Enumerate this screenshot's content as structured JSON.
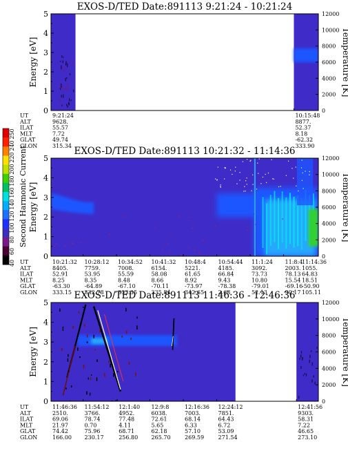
{
  "colorbar": {
    "label": "Second Harmonic Current",
    "ticks": [
      "40",
      "60",
      "80",
      "100",
      "120",
      "140",
      "160",
      "180",
      "200",
      "220",
      "240",
      "250"
    ],
    "colors": [
      "#000000",
      "#4a0033",
      "#7a1a8a",
      "#3a2fc0",
      "#2030ff",
      "#1e70ff",
      "#00b0ff",
      "#00e0e0",
      "#00c060",
      "#40d000",
      "#c0e000",
      "#ffe000",
      "#ff8000",
      "#ff2000",
      "#e00000"
    ]
  },
  "palette": {
    "background": "#3f2cc8",
    "blue": "#1e56ff",
    "light": "#28a8ff",
    "cyan": "#00e8e8",
    "green": "#30d030",
    "yellow": "#e8e000",
    "red": "#ff2020",
    "white": "#ffffff"
  },
  "chart_data": [
    {
      "type": "heatmap",
      "title": "EXOS-D/TED   Date:891113  9:21:24 - 10:21:24",
      "ylabel": "Energy [eV]",
      "ylabel_right": "Temperature [K]",
      "ylim": [
        0,
        5
      ],
      "yticks": [
        "0",
        "1",
        "2",
        "3",
        "4",
        "5"
      ],
      "ylim_right": [
        0,
        12000
      ],
      "yticks_right": [
        "0",
        "2000",
        "4000",
        "6000",
        "8000",
        "10000",
        "12000"
      ],
      "data_coverage": [
        [
          0.0,
          0.0916
        ],
        [
          0.9084,
          1.0
        ]
      ],
      "readout_labels": [
        "UT",
        "ALT",
        "ILAT",
        "MLT",
        "GLAT",
        "GLON"
      ],
      "readouts": [
        {
          "x": 0.0,
          "values": [
            "9:21:24",
            "9628.",
            "55.57",
            "7.72",
            "49.74",
            "315.34"
          ]
        },
        {
          "x": 0.9084,
          "values": [
            "10:15:48",
            "8877.",
            "52.37",
            "8.18",
            "-62.32",
            "333.90"
          ]
        }
      ]
    },
    {
      "type": "heatmap",
      "title": "EXOS-D/TED   Date:891113  10:21:32 - 11:14:36",
      "ylabel": "Energy [eV]",
      "ylabel_right": "Temperature [K]",
      "ylim": [
        0,
        5
      ],
      "yticks": [
        "0",
        "1",
        "2",
        "3",
        "4",
        "5"
      ],
      "ylim_right": [
        0,
        12000
      ],
      "yticks_right": [
        "0",
        "2000",
        "4000",
        "6000",
        "8000",
        "10000",
        "12000"
      ],
      "readout_labels": [
        "UT",
        "ALT",
        "ILAT",
        "MLT",
        "GLAT",
        "GLON"
      ],
      "readouts": [
        {
          "x": 0.0,
          "values": [
            "10:21:32",
            "8405.",
            "52.91",
            "8.25",
            "-63.30",
            "333.15"
          ]
        },
        {
          "x": 0.12,
          "values": [
            "10:28:12",
            "7759.",
            "53.95",
            "8.35",
            "-64.89",
            "332.78"
          ]
        },
        {
          "x": 0.245,
          "values": [
            "10:34:52",
            "7008.",
            "55.59",
            "8.48",
            "-67.10",
            "333.35"
          ]
        },
        {
          "x": 0.37,
          "values": [
            "10:41:32",
            "6154.",
            "58.08",
            "8.66",
            "-70.11",
            "335.84"
          ]
        },
        {
          "x": 0.495,
          "values": [
            "10:48:4",
            "5221.",
            "61.65",
            "8.92",
            "-73.97",
            "342.65"
          ]
        },
        {
          "x": 0.62,
          "values": [
            "10:54:44",
            "4185.",
            "66.84",
            "9.43",
            "-78.38",
            "2.68"
          ]
        },
        {
          "x": 0.745,
          "values": [
            "11:1:24",
            "3092.",
            "73.73",
            "10.80",
            "-79.01",
            "52.13"
          ]
        },
        {
          "x": 0.87,
          "values": [
            "11:8:4",
            "2003.",
            "78.13",
            "15.54",
            "-69.16",
            "90.17"
          ]
        },
        {
          "x": 1.0,
          "values": [
            "11:14:36",
            "1055.",
            "64.83",
            "18.51",
            "-50.90",
            "105.11"
          ]
        }
      ]
    },
    {
      "type": "heatmap",
      "title": "EXOS-D/TED   Date:891113  11:46:36 - 12:46:36",
      "ylabel": "Energy [eV]",
      "ylabel_right": "Temperature [K]",
      "ylim": [
        0,
        5
      ],
      "yticks": [
        "0",
        "1",
        "2",
        "3",
        "4",
        "5"
      ],
      "ylim_right": [
        0,
        12000
      ],
      "yticks_right": [
        "0",
        "2000",
        "4000",
        "6000",
        "8000",
        "10000",
        "12000"
      ],
      "data_coverage": [
        [
          0.0,
          0.69
        ],
        [
          0.918,
          1.0
        ]
      ],
      "readout_labels": [
        "UT",
        "ALT",
        "ILAT",
        "MLT",
        "GLAT",
        "GLON"
      ],
      "readouts": [
        {
          "x": 0.0,
          "values": [
            "11:46:36",
            "2510.",
            "69.06",
            "21.97",
            "74.42",
            "166.00"
          ]
        },
        {
          "x": 0.12,
          "values": [
            "11:54:12",
            "3766.",
            "78.74",
            "0.70",
            "75.96",
            "230.17"
          ]
        },
        {
          "x": 0.248,
          "values": [
            "12:1:40",
            "4952.",
            "77.48",
            "4.11",
            "68.71",
            "256.80"
          ]
        },
        {
          "x": 0.37,
          "values": [
            "12:9:8",
            "6038.",
            "72.61",
            "5.65",
            "62.18",
            "265.70"
          ]
        },
        {
          "x": 0.495,
          "values": [
            "12:16:36",
            "7003.",
            "68.14",
            "6.33",
            "57.10",
            "269.59"
          ]
        },
        {
          "x": 0.62,
          "values": [
            "12:24:12",
            "7851.",
            "64.43",
            "6.72",
            "53.09",
            "271.54"
          ]
        },
        {
          "x": 0.918,
          "values": [
            "12:41:56",
            "9303.",
            "58.31",
            "7.22",
            "46.65",
            "273.10"
          ]
        }
      ]
    }
  ]
}
